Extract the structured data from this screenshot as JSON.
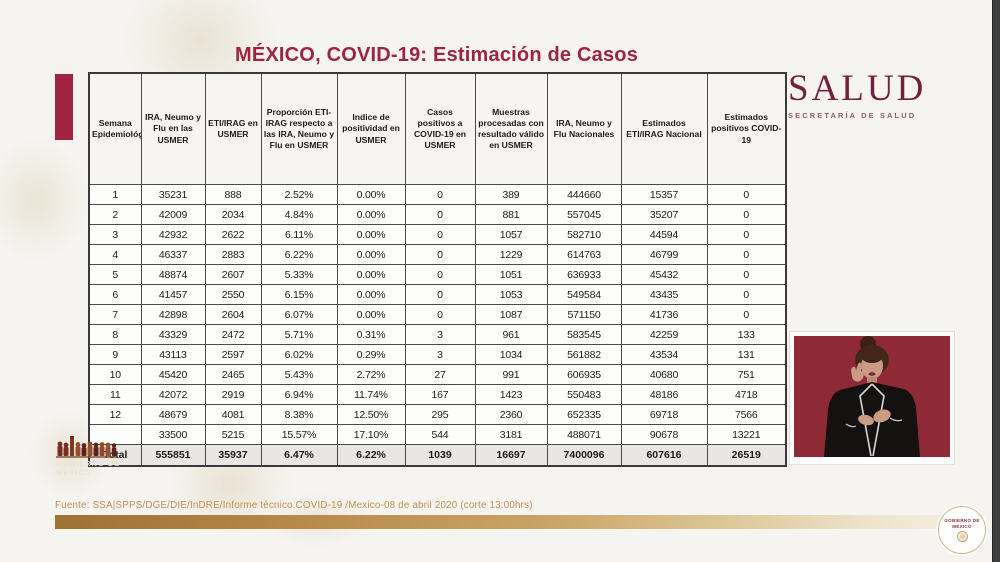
{
  "title": "MÉXICO, COVID-19: Estimación de Casos",
  "salud_logo": {
    "name": "SALUD",
    "subtitle": "SECRETARÍA DE SALUD"
  },
  "gobierno_watermark": {
    "line1": "GOBIERNO DE",
    "line2": "MÉXICO"
  },
  "badge": {
    "line1": "GOBIERNO DE",
    "line2": "MÉXICO"
  },
  "table": {
    "headers": [
      "Semana Epidemiológica",
      "IRA, Neumo y Flu en las USMER",
      "ETI/IRAG en USMER",
      "Proporción ETI-IRAG respecto a las IRA, Neumo y Flu en USMER",
      "Indice de positividad en USMER",
      "Casos positivos a COVID-19 en USMER",
      "Muestras procesadas con resultado válido en USMER",
      "IRA, Neumo y Flu Nacionales",
      "Estimados ETI/IRAG Nacional",
      "Estimados positivos COVID-19"
    ],
    "rows": [
      [
        "1",
        "35231",
        "888",
        "2.52%",
        "0.00%",
        "0",
        "389",
        "444660",
        "15357",
        "0"
      ],
      [
        "2",
        "42009",
        "2034",
        "4.84%",
        "0.00%",
        "0",
        "881",
        "557045",
        "35207",
        "0"
      ],
      [
        "3",
        "42932",
        "2622",
        "6.11%",
        "0.00%",
        "0",
        "1057",
        "582710",
        "44594",
        "0"
      ],
      [
        "4",
        "46337",
        "2883",
        "6.22%",
        "0.00%",
        "0",
        "1229",
        "614763",
        "46799",
        "0"
      ],
      [
        "5",
        "48874",
        "2607",
        "5.33%",
        "0.00%",
        "0",
        "1051",
        "636933",
        "45432",
        "0"
      ],
      [
        "6",
        "41457",
        "2550",
        "6.15%",
        "0.00%",
        "0",
        "1053",
        "549584",
        "43435",
        "0"
      ],
      [
        "7",
        "42898",
        "2604",
        "6.07%",
        "0.00%",
        "0",
        "1087",
        "571150",
        "41736",
        "0"
      ],
      [
        "8",
        "43329",
        "2472",
        "5.71%",
        "0.31%",
        "3",
        "961",
        "583545",
        "42259",
        "133"
      ],
      [
        "9",
        "43113",
        "2597",
        "6.02%",
        "0.29%",
        "3",
        "1034",
        "561882",
        "43534",
        "131"
      ],
      [
        "10",
        "45420",
        "2465",
        "5.43%",
        "2.72%",
        "27",
        "991",
        "606935",
        "40680",
        "751"
      ],
      [
        "11",
        "42072",
        "2919",
        "6.94%",
        "11.74%",
        "167",
        "1423",
        "550483",
        "48186",
        "4718"
      ],
      [
        "12",
        "48679",
        "4081",
        "8.38%",
        "12.50%",
        "295",
        "2360",
        "652335",
        "69718",
        "7566"
      ],
      [
        "",
        "33500",
        "5215",
        "15.57%",
        "17.10%",
        "544",
        "3181",
        "488071",
        "90678",
        "13221"
      ]
    ],
    "total_row": [
      "Total",
      "555851",
      "35937",
      "6.47%",
      "6.22%",
      "1039",
      "16697",
      "7400096",
      "607616",
      "26519"
    ]
  },
  "footer": {
    "source": "Fuente: SSA|SPPS/DGE/DIE/InDRE/Informe técnico.COVID-19 /Mexico-08 de abril 2020 (corte 13:00hrs)"
  },
  "colors": {
    "title": "#9c2444",
    "accent_bar": "#a02342",
    "salud": "#731f3f",
    "video_bg": "#8e2a36",
    "gold_band_start": "#9e7134",
    "gold_band_end": "#f3ecdc",
    "source_text": "#c18f4e"
  }
}
